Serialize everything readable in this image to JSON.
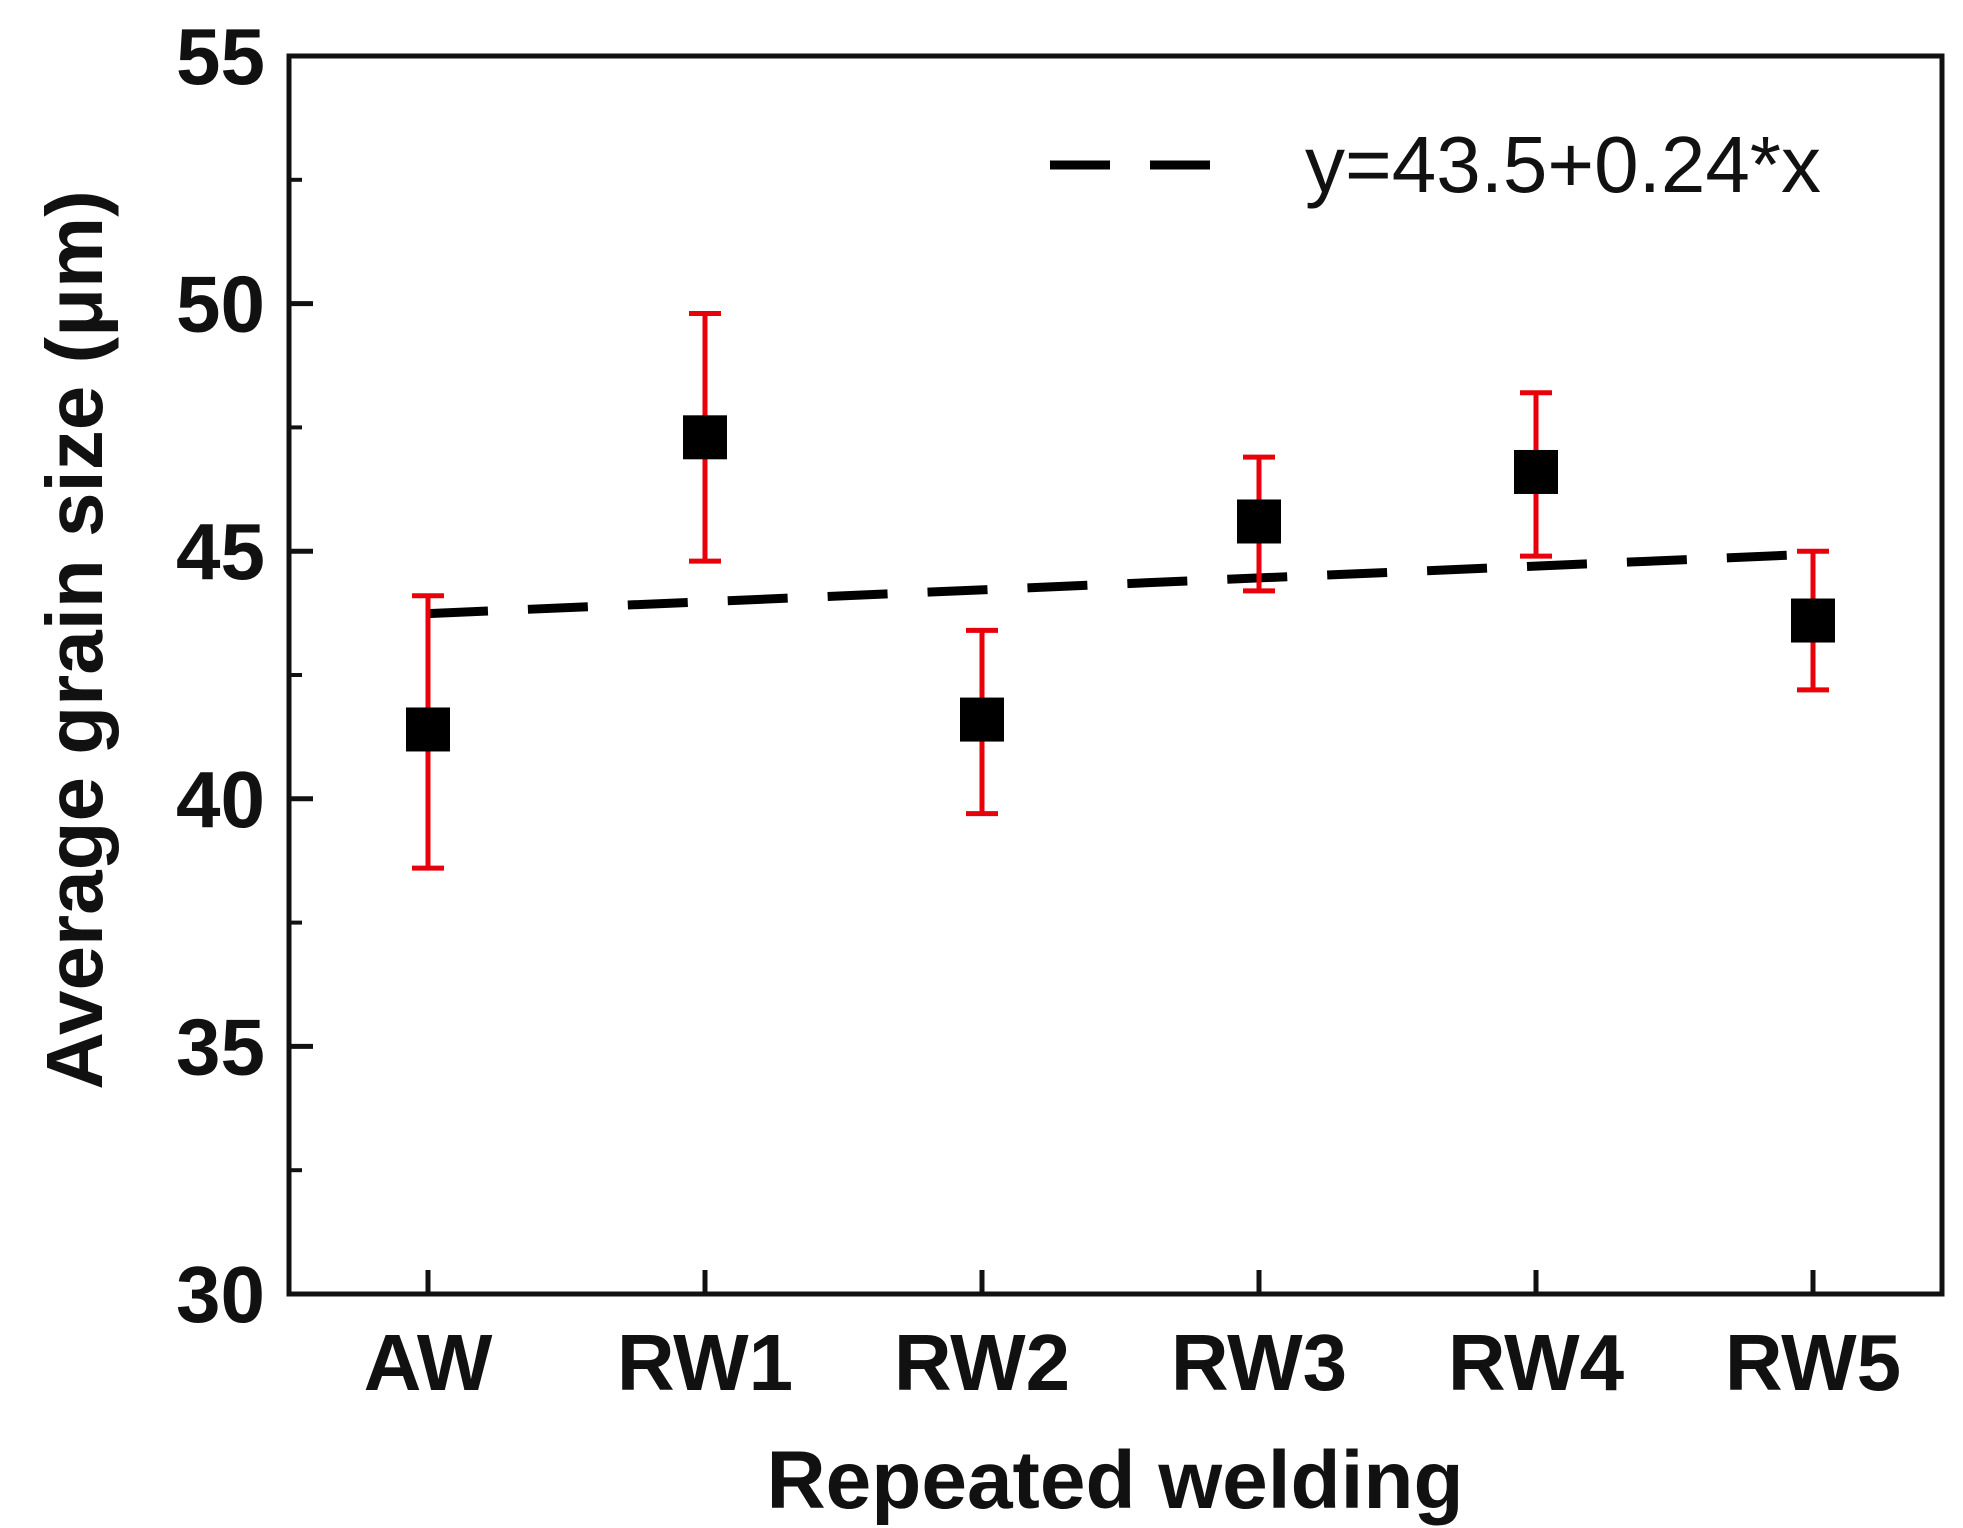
{
  "chart_data": {
    "type": "scatter",
    "title": "",
    "xlabel": "Repeated welding",
    "ylabel": "Average grain size (μm)",
    "categories": [
      "AW",
      "RW1",
      "RW2",
      "RW3",
      "RW4",
      "RW5"
    ],
    "ylim": [
      30,
      55
    ],
    "yticks_major": [
      30,
      35,
      40,
      45,
      50,
      55
    ],
    "yticks_minor": [
      32.5,
      37.5,
      42.5,
      47.5,
      52.5
    ],
    "yticks_major_labels": [
      "30",
      "35",
      "40",
      "45",
      "50",
      "55"
    ],
    "series": [
      {
        "name": "Average grain size",
        "marker": "square",
        "values": [
          41.4,
          47.3,
          41.6,
          45.6,
          46.6,
          43.6
        ],
        "error_upper": [
          44.1,
          49.8,
          43.4,
          46.9,
          48.2,
          45.0
        ],
        "error_lower": [
          38.6,
          44.8,
          39.7,
          44.2,
          44.9,
          42.2
        ]
      }
    ],
    "fit_line": {
      "label": "y=43.5+0.24*x",
      "intercept": 43.5,
      "slope": 0.24,
      "x_start": 1,
      "x_end": 6,
      "style": "dashed"
    },
    "legend_position": "top-right",
    "grid": false,
    "colors": {
      "marker": "#000000",
      "error_bar": "#e8000b",
      "fit_line": "#000000",
      "axis": "#111111"
    }
  }
}
